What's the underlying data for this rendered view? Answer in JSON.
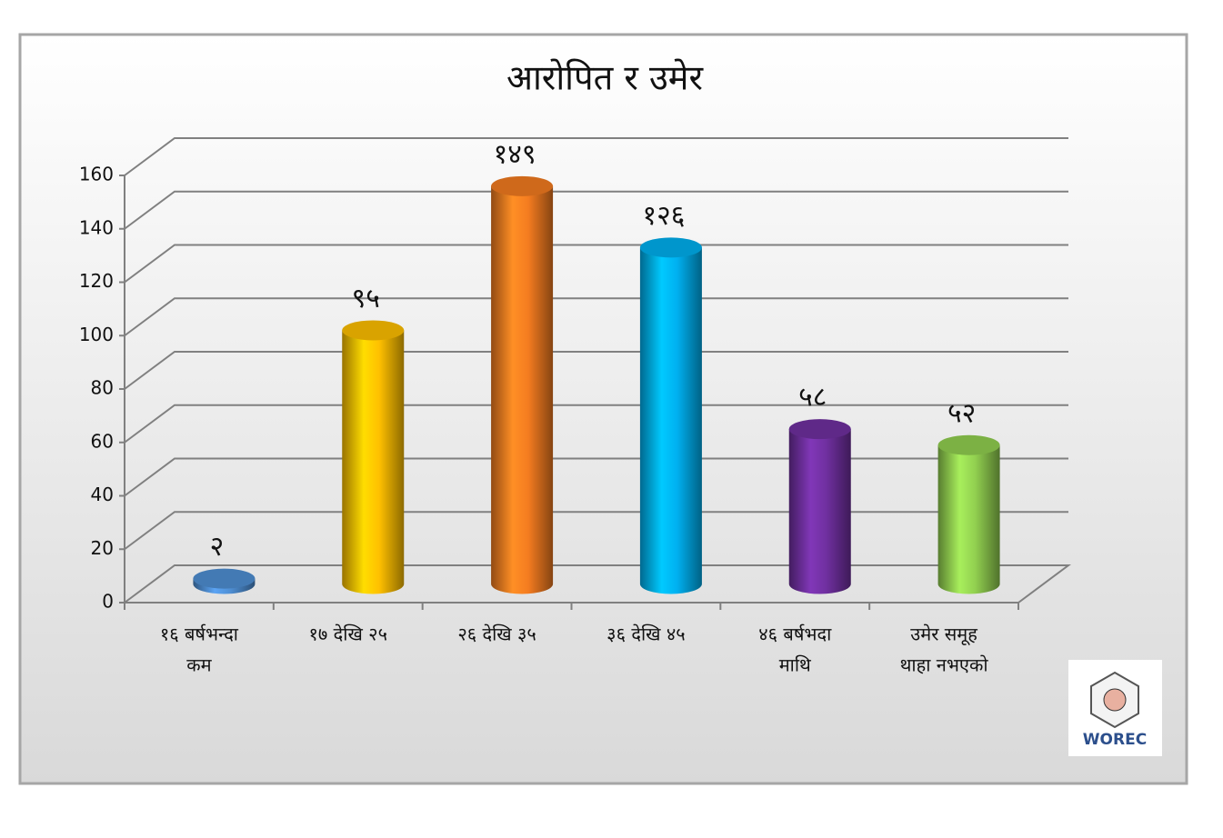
{
  "chart_data": {
    "type": "cylinder-bar",
    "title": "आरोपित र उमेर",
    "categories": [
      [
        "१६ बर्षभन्दा",
        "कम"
      ],
      [
        "१७ देखि २५"
      ],
      [
        "२६ देखि ३५"
      ],
      [
        "३६ देखि ४५"
      ],
      [
        "४६ बर्षभदा",
        "माथि"
      ],
      [
        "उमेर समूह",
        "थाहा नभएको"
      ]
    ],
    "values": [
      2,
      95,
      149,
      126,
      58,
      52
    ],
    "value_labels": [
      "२",
      "९५",
      "१४९",
      "१२६",
      "५८",
      "५२"
    ],
    "colors": [
      "#4f8fd4",
      "#ffc000",
      "#f47c20",
      "#00b0f0",
      "#7030a0",
      "#92d050"
    ],
    "ylim": [
      0,
      160
    ],
    "yticks": [
      0,
      20,
      40,
      60,
      80,
      100,
      120,
      140,
      160
    ],
    "grid": true,
    "logo": "WOREC"
  }
}
